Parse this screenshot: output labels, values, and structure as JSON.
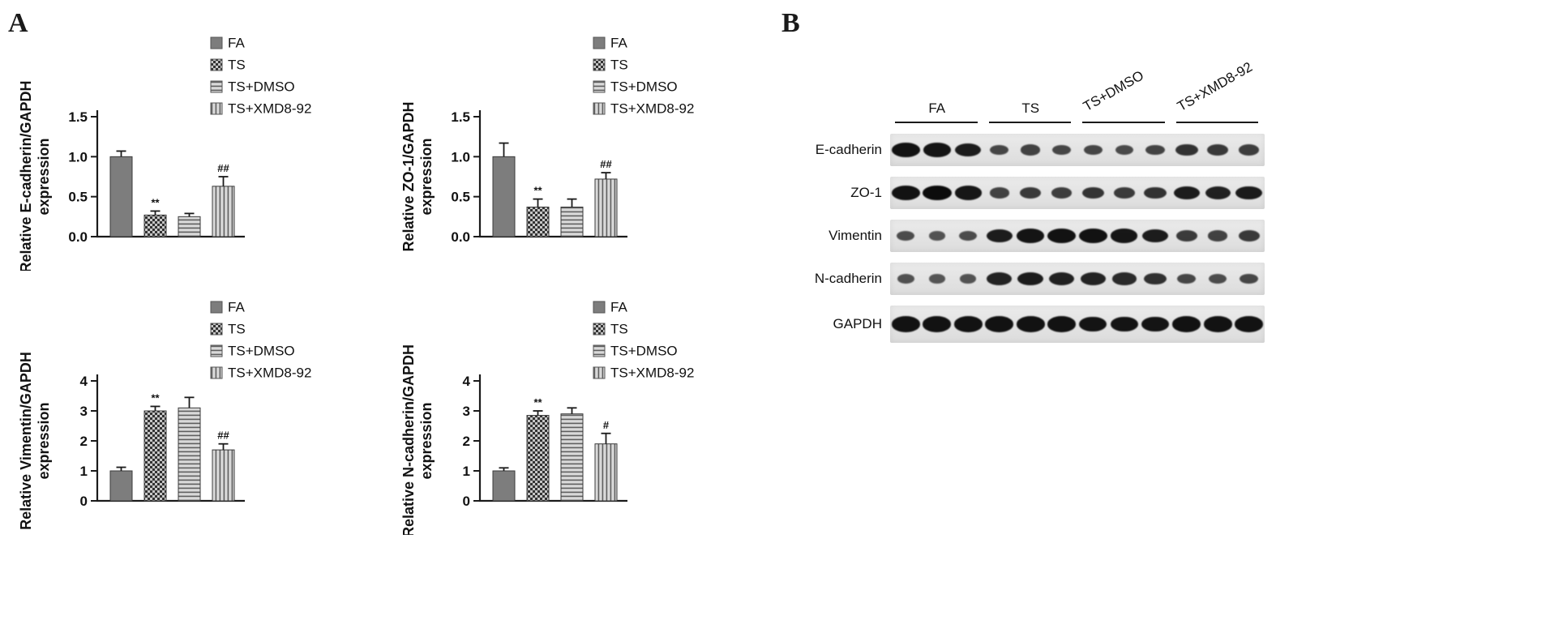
{
  "figure": {
    "panel_a_label": "A",
    "panel_b_label": "B"
  },
  "colors": {
    "axis": "#1a1a1a",
    "bar_solid": "#7d7d7d",
    "pattern_bg": "#d9d9d9",
    "pattern_fg": "#333333",
    "pattern_line": "#5f5f5f",
    "band": "#0c0c0c",
    "strip_bg": "#e4e4e4"
  },
  "legend_items": [
    {
      "label": "FA",
      "pattern": "solid"
    },
    {
      "label": "TS",
      "pattern": "checker"
    },
    {
      "label": "TS+DMSO",
      "pattern": "hlines"
    },
    {
      "label": "TS+XMD8-92",
      "pattern": "vlines"
    }
  ],
  "chart_data": [
    {
      "type": "bar",
      "title": "",
      "ylabel_line1": "Relative E-cadherin/GAPDH",
      "ylabel_line2": "expression",
      "categories": [
        "FA",
        "TS",
        "TS+DMSO",
        "TS+XMD8-92"
      ],
      "values": [
        1.0,
        0.27,
        0.25,
        0.63
      ],
      "errors": [
        0.07,
        0.05,
        0.04,
        0.12
      ],
      "annotations": [
        "",
        "**",
        "",
        "##"
      ],
      "ylim": [
        0,
        1.5
      ],
      "yticks": [
        "0.0",
        "0.5",
        "1.0",
        "1.5"
      ],
      "legend": [
        "FA",
        "TS",
        "TS+DMSO",
        "TS+XMD8-92"
      ],
      "legend_position": "top-right",
      "grid": false
    },
    {
      "type": "bar",
      "title": "",
      "ylabel_line1": "Relative ZO-1/GAPDH",
      "ylabel_line2": "expression",
      "categories": [
        "FA",
        "TS",
        "TS+DMSO",
        "TS+XMD8-92"
      ],
      "values": [
        1.0,
        0.37,
        0.37,
        0.72
      ],
      "errors": [
        0.17,
        0.1,
        0.1,
        0.08
      ],
      "annotations": [
        "",
        "**",
        "",
        "##"
      ],
      "ylim": [
        0,
        1.5
      ],
      "yticks": [
        "0.0",
        "0.5",
        "1.0",
        "1.5"
      ],
      "legend": [
        "FA",
        "TS",
        "TS+DMSO",
        "TS+XMD8-92"
      ],
      "legend_position": "top-right",
      "grid": false
    },
    {
      "type": "bar",
      "title": "",
      "ylabel_line1": "Relative Vimentin/GAPDH",
      "ylabel_line2": "expression",
      "categories": [
        "FA",
        "TS",
        "TS+DMSO",
        "TS+XMD8-92"
      ],
      "values": [
        1.0,
        3.0,
        3.1,
        1.7
      ],
      "errors": [
        0.12,
        0.15,
        0.35,
        0.2
      ],
      "annotations": [
        "",
        "**",
        "",
        "##"
      ],
      "ylim": [
        0,
        4
      ],
      "yticks": [
        "0",
        "1",
        "2",
        "3",
        "4"
      ],
      "legend": [
        "FA",
        "TS",
        "TS+DMSO",
        "TS+XMD8-92"
      ],
      "legend_position": "top-right",
      "grid": false
    },
    {
      "type": "bar",
      "title": "",
      "ylabel_line1": "Relative N-cadherin/GAPDH",
      "ylabel_line2": "expression",
      "categories": [
        "FA",
        "TS",
        "TS+DMSO",
        "TS+XMD8-92"
      ],
      "values": [
        1.0,
        2.85,
        2.9,
        1.9
      ],
      "errors": [
        0.1,
        0.15,
        0.2,
        0.35
      ],
      "annotations": [
        "",
        "**",
        "",
        "#"
      ],
      "ylim": [
        0,
        4
      ],
      "yticks": [
        "0",
        "1",
        "2",
        "3",
        "4"
      ],
      "legend": [
        "FA",
        "TS",
        "TS+DMSO",
        "TS+XMD8-92"
      ],
      "legend_position": "top-right",
      "grid": false
    }
  ],
  "blot": {
    "group_labels": [
      {
        "label": "FA",
        "rotated": false
      },
      {
        "label": "TS",
        "rotated": false
      },
      {
        "label": "TS+DMSO",
        "rotated": true
      },
      {
        "label": "TS+XMD8-92",
        "rotated": true
      }
    ],
    "lanes_per_group": 3,
    "rows": [
      {
        "label": "E-cadherin",
        "intensities": [
          0.95,
          0.92,
          0.85,
          0.5,
          0.55,
          0.5,
          0.5,
          0.48,
          0.52,
          0.68,
          0.62,
          0.58
        ]
      },
      {
        "label": "ZO-1",
        "intensities": [
          0.95,
          1.0,
          0.9,
          0.55,
          0.62,
          0.58,
          0.65,
          0.6,
          0.68,
          0.85,
          0.82,
          0.88
        ]
      },
      {
        "label": "Vimentin",
        "intensities": [
          0.45,
          0.4,
          0.45,
          0.85,
          0.92,
          0.95,
          0.95,
          0.9,
          0.85,
          0.6,
          0.55,
          0.62
        ]
      },
      {
        "label": "N-cadherin",
        "intensities": [
          0.42,
          0.38,
          0.4,
          0.8,
          0.85,
          0.82,
          0.8,
          0.75,
          0.7,
          0.5,
          0.45,
          0.5
        ]
      },
      {
        "label": "GAPDH",
        "intensities": [
          0.95,
          0.95,
          0.95,
          0.95,
          0.95,
          0.95,
          0.92,
          0.92,
          0.92,
          0.95,
          0.95,
          0.95
        ]
      }
    ]
  }
}
